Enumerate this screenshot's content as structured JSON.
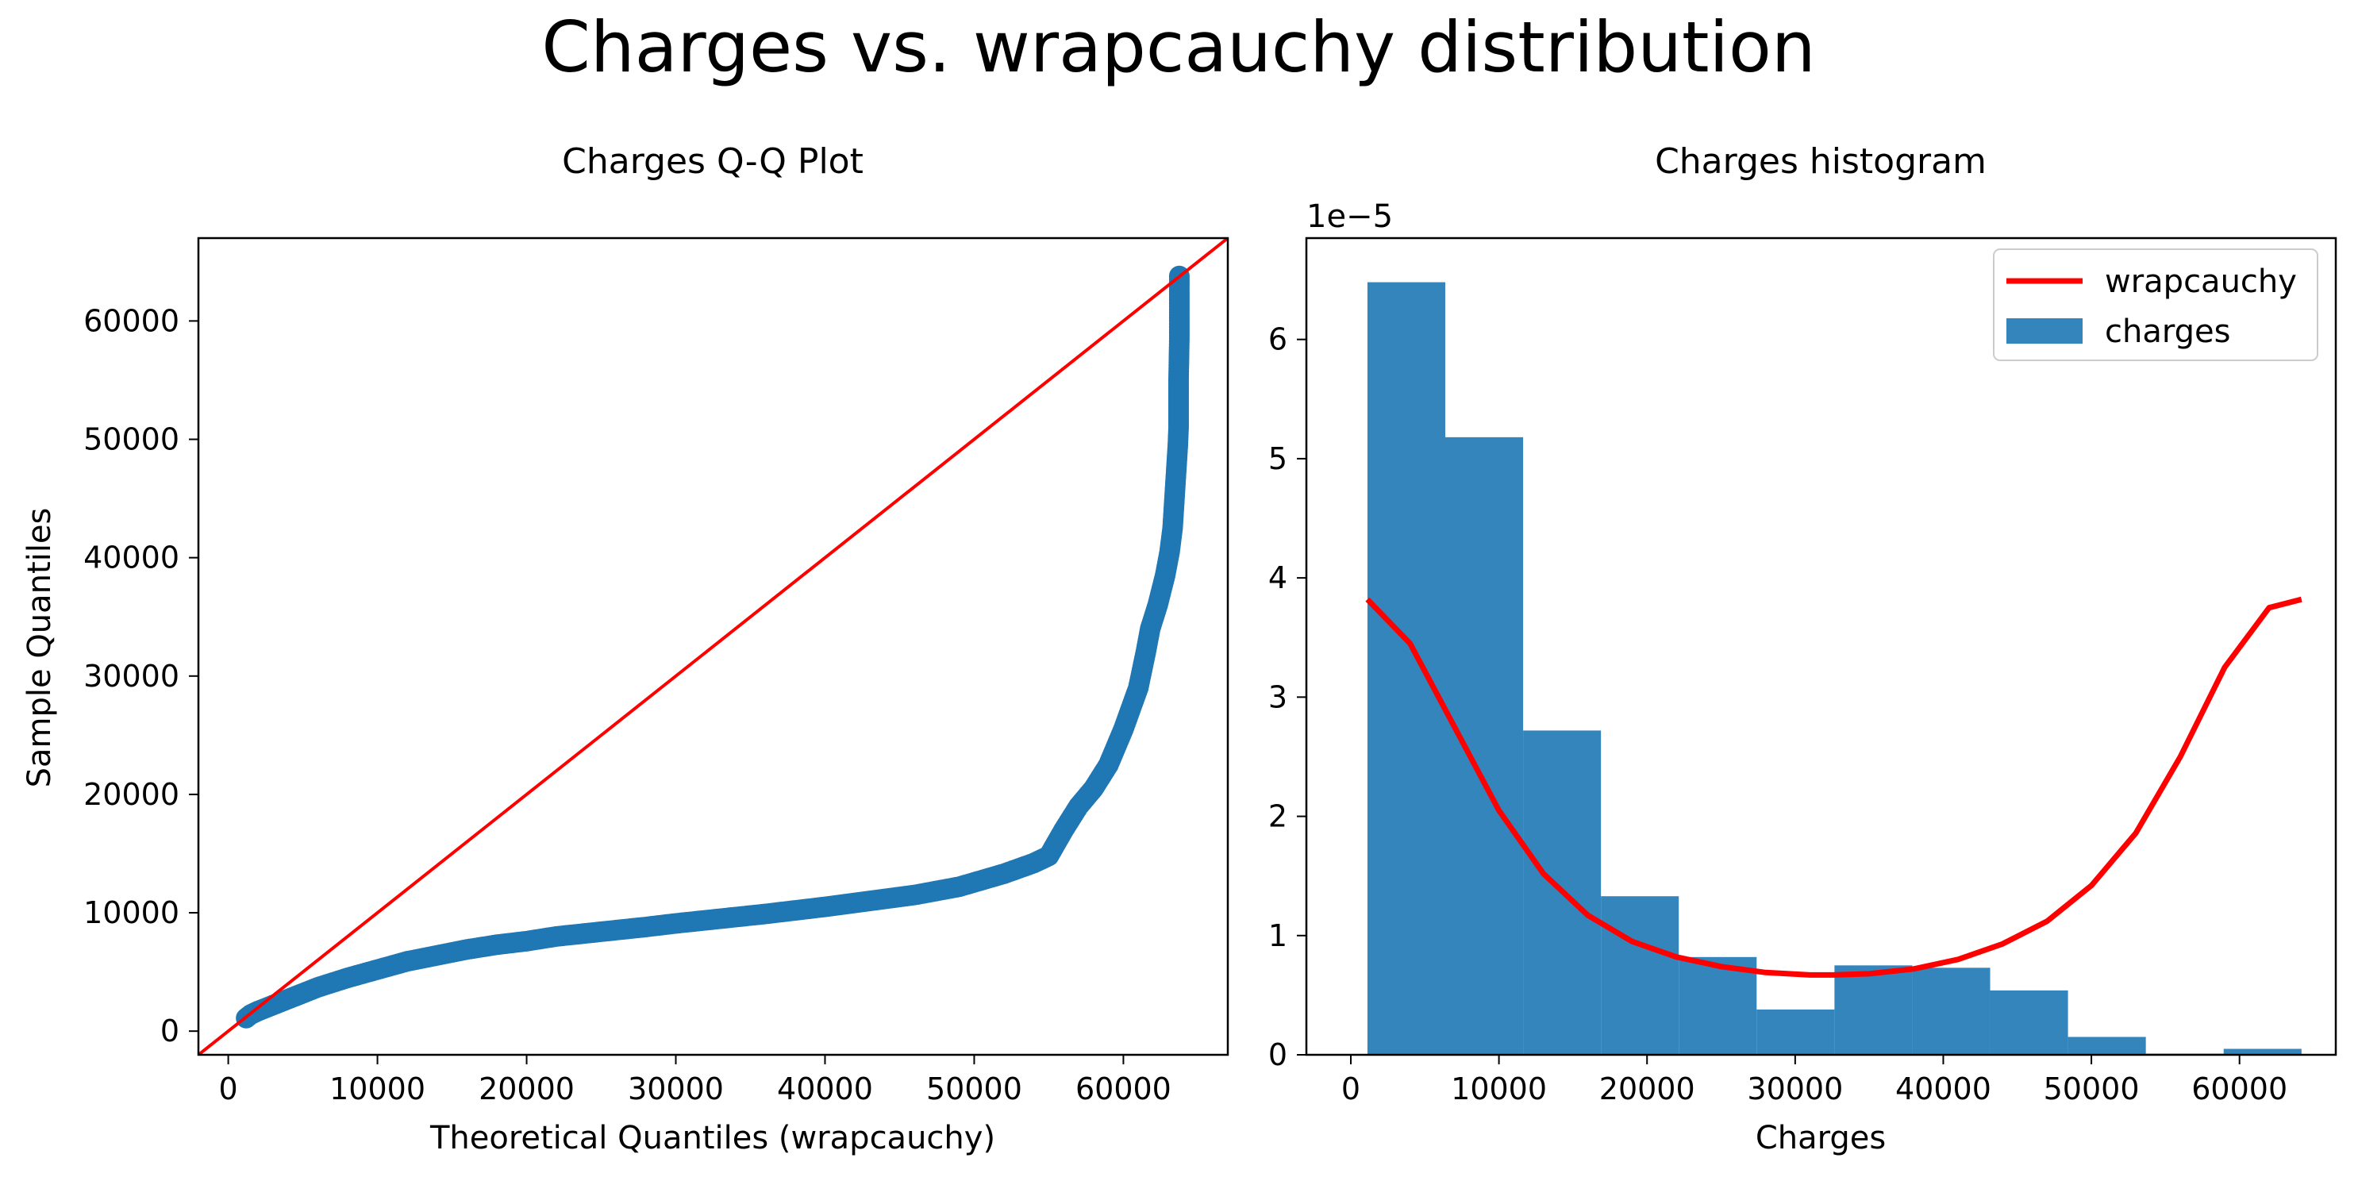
{
  "figure": {
    "suptitle": "Charges vs. wrapcauchy distribution"
  },
  "colors": {
    "points": "#1f77b4",
    "bars": "#3585bd",
    "line": "#ff0000",
    "axis": "#000000"
  },
  "chart_data": [
    {
      "type": "scatter",
      "title": "Charges Q-Q Plot",
      "xlabel": "Theoretical Quantiles (wrapcauchy)",
      "ylabel": "Sample Quantiles",
      "xlim": [
        -2000,
        67000
      ],
      "ylim": [
        -2000,
        67000
      ],
      "x_ticks": [
        0,
        10000,
        20000,
        30000,
        40000,
        50000,
        60000
      ],
      "y_ticks": [
        0,
        10000,
        20000,
        30000,
        40000,
        50000,
        60000
      ],
      "reference_line": {
        "x": [
          -2000,
          67000
        ],
        "y": [
          -2000,
          67000
        ]
      },
      "series": [
        {
          "points": [
            [
              1200,
              1100
            ],
            [
              1500,
              1400
            ],
            [
              2000,
              1700
            ],
            [
              3000,
              2200
            ],
            [
              4000,
              2700
            ],
            [
              5000,
              3200
            ],
            [
              6000,
              3700
            ],
            [
              7000,
              4100
            ],
            [
              8000,
              4500
            ],
            [
              10000,
              5200
            ],
            [
              12000,
              5900
            ],
            [
              14000,
              6400
            ],
            [
              16000,
              6900
            ],
            [
              18000,
              7300
            ],
            [
              20000,
              7600
            ],
            [
              22000,
              8000
            ],
            [
              25000,
              8400
            ],
            [
              28000,
              8800
            ],
            [
              30000,
              9100
            ],
            [
              33000,
              9500
            ],
            [
              36000,
              9900
            ],
            [
              40000,
              10500
            ],
            [
              43000,
              11000
            ],
            [
              46000,
              11500
            ],
            [
              49000,
              12200
            ],
            [
              52000,
              13300
            ],
            [
              54000,
              14200
            ],
            [
              55000,
              14800
            ],
            [
              56000,
              17000
            ],
            [
              57000,
              19000
            ],
            [
              58000,
              20500
            ],
            [
              59000,
              22500
            ],
            [
              60000,
              25500
            ],
            [
              61000,
              29000
            ],
            [
              61500,
              32000
            ],
            [
              61800,
              34000
            ],
            [
              62300,
              36000
            ],
            [
              62800,
              38500
            ],
            [
              63100,
              40500
            ],
            [
              63300,
              42500
            ],
            [
              63400,
              44500
            ],
            [
              63500,
              46500
            ],
            [
              63600,
              48500
            ],
            [
              63650,
              49500
            ],
            [
              63700,
              51000
            ],
            [
              63700,
              52500
            ],
            [
              63700,
              55000
            ],
            [
              63750,
              58500
            ],
            [
              63750,
              60000
            ],
            [
              63750,
              62500
            ],
            [
              63750,
              63800
            ]
          ]
        }
      ]
    },
    {
      "type": "bar",
      "title": "Charges histogram",
      "xlabel": "Charges",
      "ylabel": "",
      "y_offset_label": "1e−5",
      "xlim": [
        -3000,
        66500
      ],
      "ylim": [
        0,
        6.85
      ],
      "x_ticks": [
        0,
        10000,
        20000,
        30000,
        40000,
        50000,
        60000
      ],
      "y_ticks": [
        0,
        1,
        2,
        3,
        4,
        5,
        6
      ],
      "legend_position": "upper right",
      "series": [
        {
          "name": "charges",
          "kind": "histogram",
          "bin_edges": [
            1122,
            6377,
            11633,
            16888,
            22143,
            27399,
            32654,
            37909,
            43165,
            48420,
            53675,
            58930,
            64186
          ],
          "values": [
            6.48,
            5.18,
            2.72,
            1.33,
            0.82,
            0.38,
            0.75,
            0.73,
            0.54,
            0.15,
            0.01,
            0.05
          ]
        },
        {
          "name": "wrapcauchy",
          "kind": "line",
          "x": [
            1122,
            4000,
            7000,
            10000,
            13000,
            16000,
            19000,
            22000,
            25000,
            28000,
            31000,
            32600,
            35000,
            38000,
            41000,
            44000,
            47000,
            50000,
            53000,
            56000,
            59000,
            62000,
            64186
          ],
          "y": [
            3.82,
            3.45,
            2.75,
            2.05,
            1.52,
            1.17,
            0.95,
            0.82,
            0.74,
            0.69,
            0.67,
            0.67,
            0.68,
            0.72,
            0.8,
            0.93,
            1.12,
            1.42,
            1.86,
            2.5,
            3.25,
            3.75,
            3.82
          ]
        }
      ]
    }
  ]
}
